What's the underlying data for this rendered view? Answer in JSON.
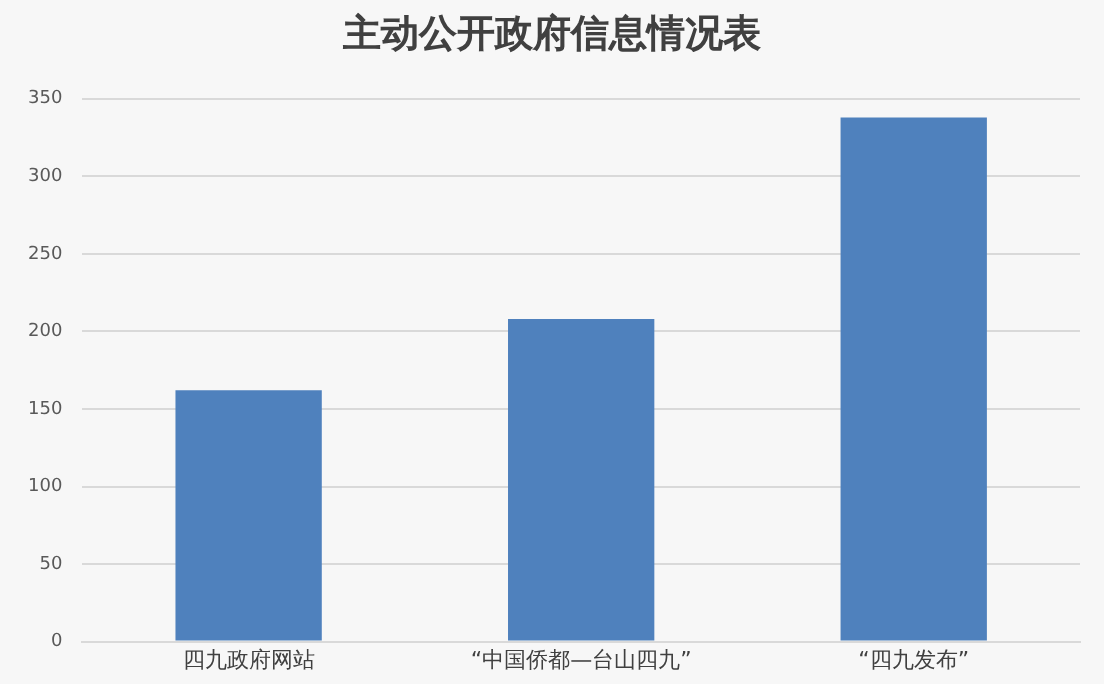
{
  "chart_data": {
    "type": "bar",
    "title": "主动公开政府信息情况表",
    "categories": [
      "四九政府网站",
      "“中国侨都—台山四九”",
      "“四九发布”"
    ],
    "values": [
      162,
      208,
      338
    ],
    "color": "#4f81bd",
    "ylim": [
      0,
      350
    ],
    "yticks": [
      0,
      50,
      100,
      150,
      200,
      250,
      300,
      350
    ],
    "grid": "y"
  }
}
